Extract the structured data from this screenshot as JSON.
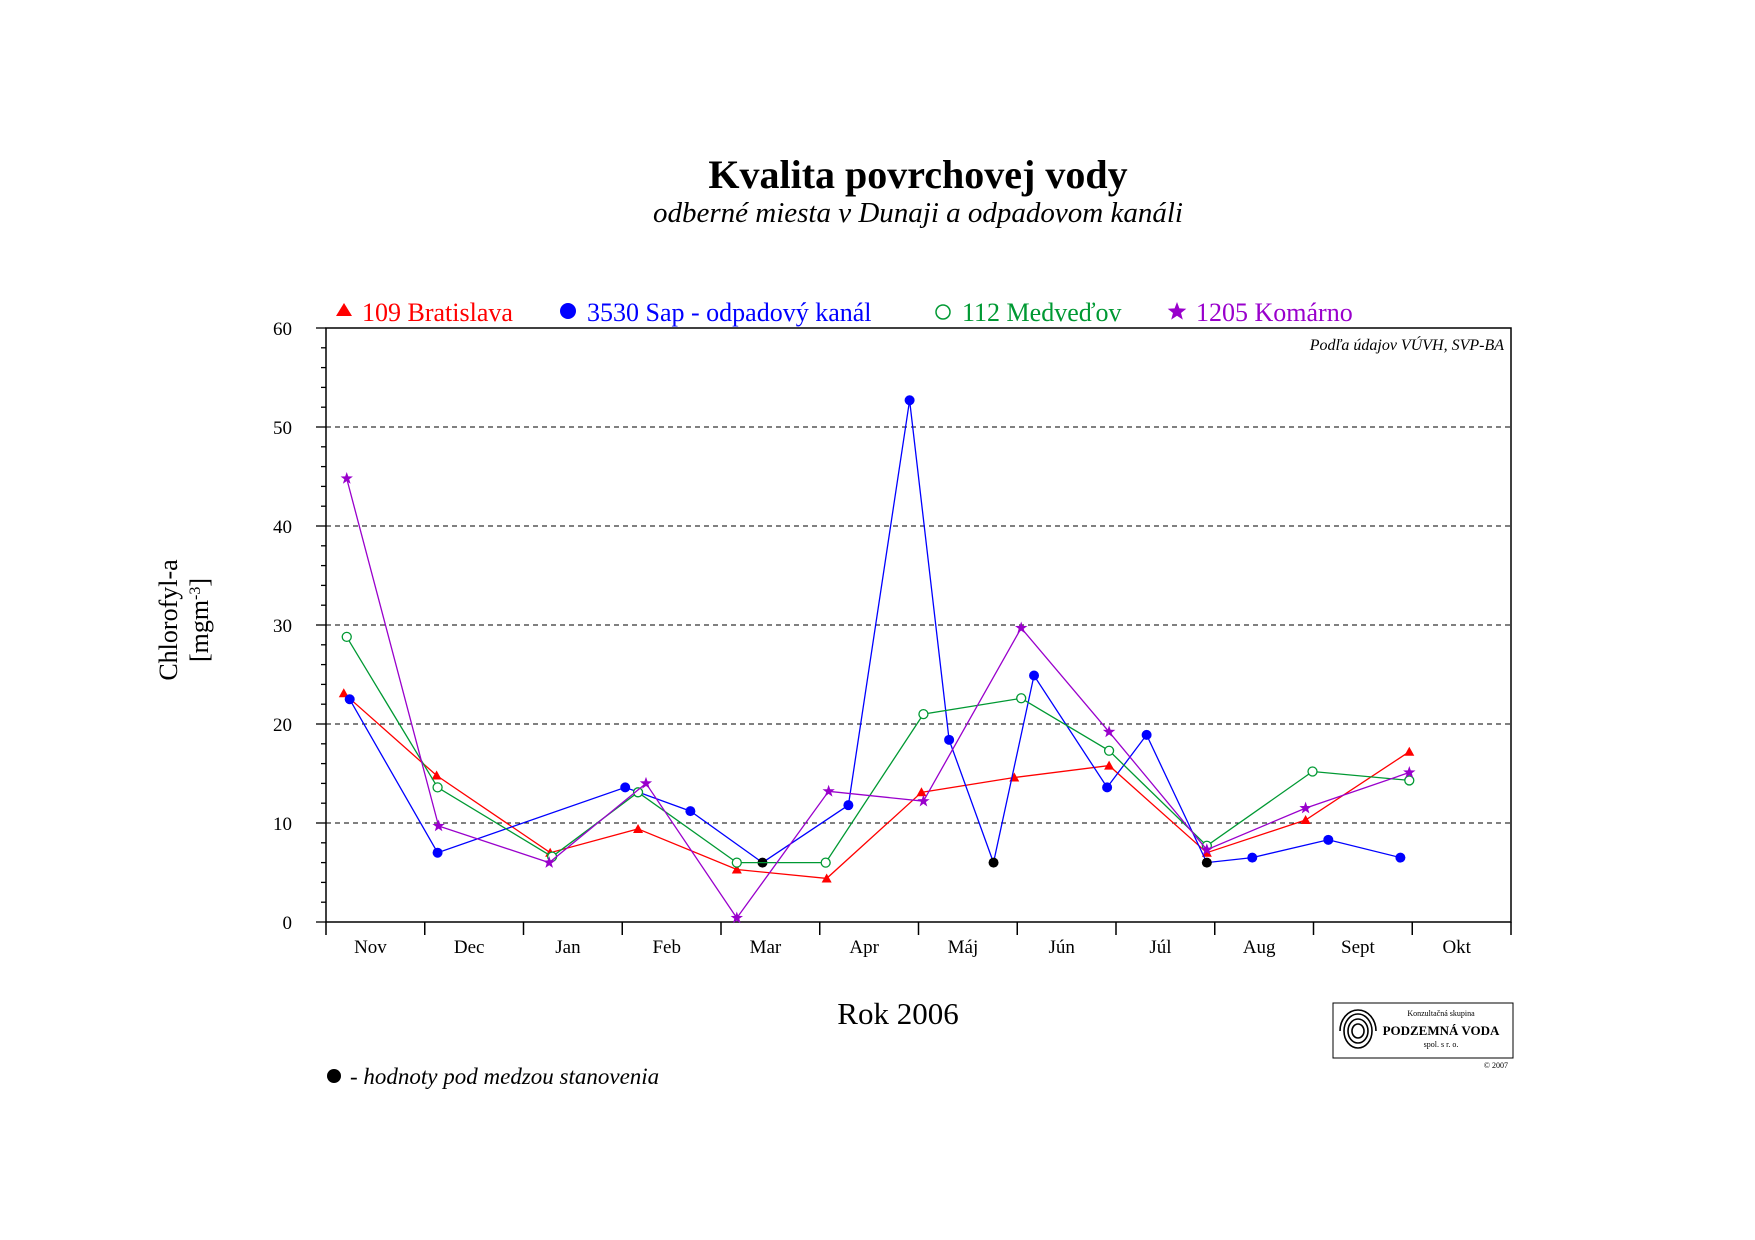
{
  "title": "Kvalita povrchovej vody",
  "subtitle": "odberné miesta v Dunaji a odpadovom kanáli",
  "source_note": "Podľa údajov VÚVH, SVP-BA",
  "footnote": "- hodnoty pod medzou stanovenia",
  "logo": {
    "line1": "Konzultačná skupina",
    "line2": "PODZEMNÁ VODA",
    "line3": "spol. s r. o.",
    "copyright": "© 2007"
  },
  "colors": {
    "bratislava": "#ff0000",
    "sap": "#0000ff",
    "medvedov": "#009933",
    "komarno": "#9900cc",
    "below_limit": "#000000",
    "grid": "#000000"
  },
  "chart_data": {
    "type": "line",
    "title": "Kvalita povrchovej vody",
    "subtitle": "odberné miesta v Dunaji a odpadovom kanáli",
    "xlabel": "Rok 2006",
    "ylabel": "Chlorofyl-a",
    "ylabel_unit": "[mgm-3]",
    "categories": [
      "Nov",
      "Dec",
      "Jan",
      "Feb",
      "Mar",
      "Apr",
      "Máj",
      "Jún",
      "Júl",
      "Aug",
      "Sept",
      "Okt"
    ],
    "ylim": [
      0,
      60
    ],
    "yticks": [
      0,
      10,
      20,
      30,
      40,
      50,
      60
    ],
    "grid": "horizontal dashed",
    "legend_position": "top",
    "series": [
      {
        "name": "109 Bratislava",
        "marker": "triangle",
        "color_key": "bratislava",
        "points": [
          {
            "x": 0.18,
            "y": 23.1
          },
          {
            "x": 1.12,
            "y": 14.8
          },
          {
            "x": 2.27,
            "y": 7.0
          },
          {
            "x": 3.16,
            "y": 9.4
          },
          {
            "x": 4.16,
            "y": 5.3
          },
          {
            "x": 5.07,
            "y": 4.4
          },
          {
            "x": 6.03,
            "y": 13.1
          },
          {
            "x": 6.97,
            "y": 14.6
          },
          {
            "x": 7.93,
            "y": 15.8
          },
          {
            "x": 8.92,
            "y": 7.0
          },
          {
            "x": 9.92,
            "y": 10.3
          },
          {
            "x": 10.97,
            "y": 17.2
          }
        ]
      },
      {
        "name": "3530 Sap - odpadový kanál",
        "marker": "circle",
        "color_key": "sap",
        "points": [
          {
            "x": 0.24,
            "y": 22.5
          },
          {
            "x": 1.13,
            "y": 7.0
          },
          {
            "x": 3.03,
            "y": 13.6
          },
          {
            "x": 3.69,
            "y": 11.2
          },
          {
            "x": 4.42,
            "y": 6.0,
            "below_limit": true
          },
          {
            "x": 5.29,
            "y": 11.8
          },
          {
            "x": 5.91,
            "y": 52.7
          },
          {
            "x": 6.31,
            "y": 18.4
          },
          {
            "x": 6.76,
            "y": 6.0,
            "below_limit": true
          },
          {
            "x": 7.17,
            "y": 24.9
          },
          {
            "x": 7.91,
            "y": 13.6
          },
          {
            "x": 8.31,
            "y": 18.9
          },
          {
            "x": 8.92,
            "y": 6.0,
            "below_limit": true
          },
          {
            "x": 9.38,
            "y": 6.5
          },
          {
            "x": 10.15,
            "y": 8.3
          },
          {
            "x": 10.88,
            "y": 6.5
          }
        ]
      },
      {
        "name": "112 Medveďov",
        "marker": "open-circle",
        "color_key": "medvedov",
        "points": [
          {
            "x": 0.21,
            "y": 28.8
          },
          {
            "x": 1.13,
            "y": 13.6
          },
          {
            "x": 2.29,
            "y": 6.6
          },
          {
            "x": 3.16,
            "y": 13.1
          },
          {
            "x": 4.16,
            "y": 6.0
          },
          {
            "x": 5.06,
            "y": 6.0
          },
          {
            "x": 6.05,
            "y": 21.0
          },
          {
            "x": 7.04,
            "y": 22.6
          },
          {
            "x": 7.93,
            "y": 17.3
          },
          {
            "x": 8.92,
            "y": 7.7
          },
          {
            "x": 9.99,
            "y": 15.2
          },
          {
            "x": 10.97,
            "y": 14.3
          }
        ]
      },
      {
        "name": "1205 Komárno",
        "marker": "star",
        "color_key": "komarno",
        "points": [
          {
            "x": 0.21,
            "y": 44.8
          },
          {
            "x": 1.14,
            "y": 9.7
          },
          {
            "x": 2.26,
            "y": 6.0
          },
          {
            "x": 3.24,
            "y": 14.0
          },
          {
            "x": 4.16,
            "y": 0.4
          },
          {
            "x": 5.09,
            "y": 13.2
          },
          {
            "x": 6.05,
            "y": 12.2
          },
          {
            "x": 7.04,
            "y": 29.7
          },
          {
            "x": 7.93,
            "y": 19.2
          },
          {
            "x": 8.92,
            "y": 7.3
          },
          {
            "x": 9.92,
            "y": 11.5
          },
          {
            "x": 10.97,
            "y": 15.1
          }
        ]
      }
    ]
  }
}
